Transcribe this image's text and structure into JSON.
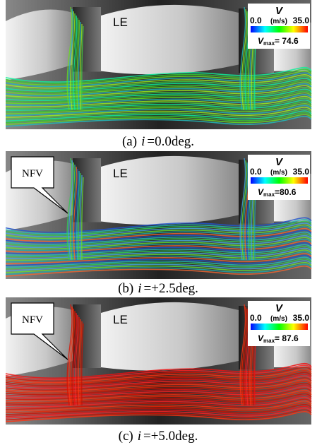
{
  "panels": [
    {
      "label_le": "LE",
      "legend": {
        "symbol": "V",
        "min": "0.0",
        "unit": "(m/s)",
        "max": "35.0",
        "vmax_symbol": "V",
        "vmax_sub": "max",
        "vmax_text": "= 74.6"
      },
      "caption": {
        "tag": "(a)",
        "var": "i",
        "text": "=0.0deg."
      }
    },
    {
      "label_le": "LE",
      "callout": "NFV",
      "legend": {
        "symbol": "V",
        "min": "0.0",
        "unit": "(m/s)",
        "max": "35.0",
        "vmax_symbol": "V",
        "vmax_sub": "max",
        "vmax_text": "=80.6"
      },
      "caption": {
        "tag": "(b)",
        "var": "i",
        "text": "=+2.5deg."
      }
    },
    {
      "label_le": "LE",
      "callout": "NFV",
      "legend": {
        "symbol": "V",
        "min": "0.0",
        "unit": "(m/s)",
        "max": "35.0",
        "vmax_symbol": "V",
        "vmax_sub": "max",
        "vmax_text": "= 87.6"
      },
      "caption": {
        "tag": "(c)",
        "var": "i",
        "text": "=+5.0deg."
      }
    }
  ]
}
